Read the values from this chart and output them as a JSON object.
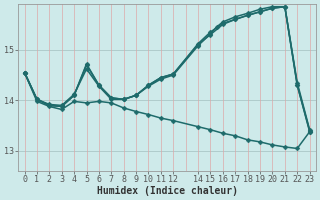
{
  "xlabel": "Humidex (Indice chaleur)",
  "bg_color": "#ceeaea",
  "line_color": "#1e6b6b",
  "grid_h_color": "#b0cccc",
  "grid_v_color": "#dda8a8",
  "xlim": [
    -0.5,
    23.5
  ],
  "ylim": [
    12.6,
    15.9
  ],
  "yticks": [
    13,
    14,
    15
  ],
  "xtick_positions": [
    0,
    1,
    2,
    3,
    4,
    5,
    6,
    7,
    8,
    9,
    10,
    11,
    12,
    14,
    15,
    16,
    17,
    18,
    19,
    20,
    21,
    22,
    23
  ],
  "xtick_labels": [
    "0",
    "1",
    "2",
    "3",
    "4",
    "5",
    "6",
    "7",
    "8",
    "9",
    "10",
    "11",
    "12",
    "14",
    "15",
    "16",
    "17",
    "18",
    "19",
    "20",
    "21",
    "22",
    "23"
  ],
  "lines": [
    {
      "x": [
        0,
        1,
        2,
        3,
        4,
        5,
        6,
        7,
        8,
        9,
        10,
        11,
        12,
        14,
        15,
        15.5,
        16,
        17,
        18,
        19,
        20,
        21,
        22,
        23
      ],
      "y": [
        14.55,
        14.02,
        13.92,
        13.9,
        14.12,
        14.62,
        14.28,
        14.02,
        14.02,
        14.1,
        14.28,
        14.42,
        14.5,
        15.08,
        15.32,
        15.45,
        15.55,
        15.65,
        15.72,
        15.8,
        15.85,
        15.85,
        14.3,
        13.38
      ]
    },
    {
      "x": [
        0,
        1,
        2,
        3,
        4,
        5,
        6,
        7,
        8,
        9,
        10,
        11,
        12,
        14,
        15,
        16,
        17,
        18,
        19,
        20,
        21,
        22,
        23
      ],
      "y": [
        14.55,
        14.02,
        13.9,
        13.88,
        14.1,
        14.7,
        14.3,
        14.05,
        14.02,
        14.1,
        14.3,
        14.45,
        14.52,
        15.12,
        15.35,
        15.52,
        15.6,
        15.68,
        15.75,
        15.82,
        15.85,
        14.3,
        13.4
      ]
    },
    {
      "x": [
        0,
        1,
        2,
        3,
        4,
        5,
        6,
        7,
        8,
        9,
        10,
        11,
        12,
        14,
        15,
        16,
        17,
        18,
        19,
        20,
        21,
        22,
        23
      ],
      "y": [
        14.55,
        14.02,
        13.9,
        13.88,
        14.1,
        14.72,
        14.3,
        14.05,
        14.02,
        14.1,
        14.3,
        14.45,
        14.52,
        15.1,
        15.3,
        15.5,
        15.6,
        15.68,
        15.75,
        15.82,
        15.85,
        14.35,
        13.42
      ]
    },
    {
      "x": [
        0,
        1,
        2,
        3,
        4,
        5,
        6,
        7,
        8,
        9,
        10,
        11,
        12,
        14,
        15,
        16,
        17,
        18,
        19,
        20,
        21,
        22,
        23
      ],
      "y": [
        14.55,
        13.98,
        13.88,
        13.82,
        13.98,
        13.95,
        13.98,
        13.95,
        13.85,
        13.78,
        13.72,
        13.65,
        13.6,
        13.48,
        13.42,
        13.35,
        13.3,
        13.22,
        13.18,
        13.12,
        13.08,
        13.05,
        13.38
      ]
    }
  ],
  "markersize": 2.5,
  "linewidth": 1.1,
  "label_fontsize": 6.5,
  "tick_fontsize": 6.0,
  "xlabel_fontsize": 7.0
}
